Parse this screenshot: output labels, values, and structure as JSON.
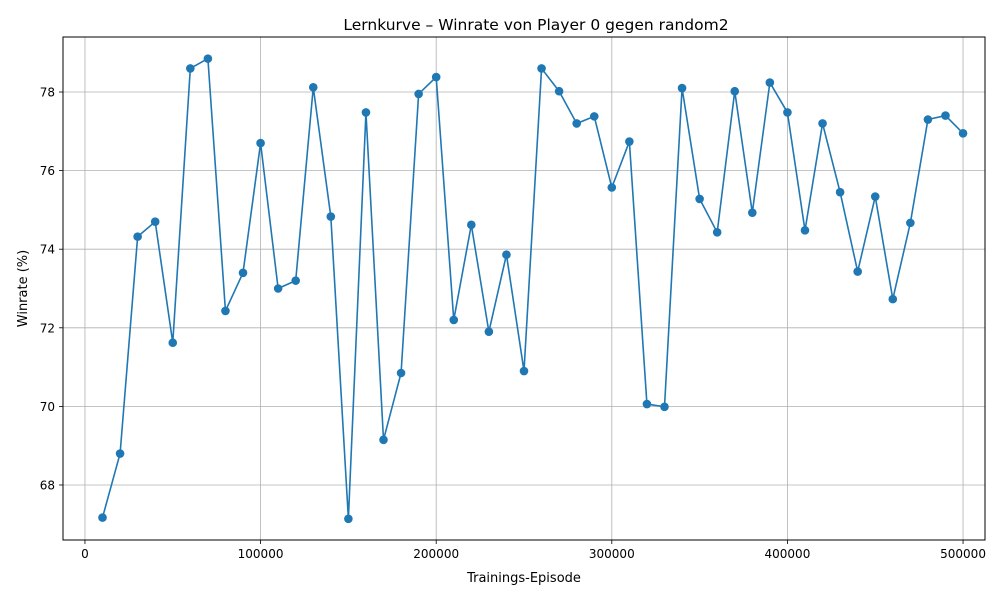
{
  "chart_data": {
    "type": "line",
    "title": "Lernkurve – Winrate von Player 0 gegen random2",
    "xlabel": "Trainings-Episode",
    "ylabel": "Winrate (%)",
    "xlim": [
      -12500,
      512500
    ],
    "ylim": [
      66.6,
      79.4
    ],
    "xticks": [
      0,
      100000,
      200000,
      300000,
      400000,
      500000
    ],
    "yticks": [
      68,
      70,
      72,
      74,
      76,
      78
    ],
    "grid": true,
    "color": "#1f77b4",
    "marker": "circle",
    "series": [
      {
        "x": [
          10000,
          20000,
          30000,
          40000,
          50000,
          60000,
          70000,
          80000,
          90000,
          100000,
          110000,
          120000,
          130000,
          140000,
          150000,
          160000,
          170000,
          180000,
          190000,
          200000,
          210000,
          220000,
          230000,
          240000,
          250000,
          260000,
          270000,
          280000,
          290000,
          300000,
          310000,
          320000,
          330000,
          340000,
          350000,
          360000,
          370000,
          380000,
          390000,
          400000,
          410000,
          420000,
          430000,
          440000,
          450000,
          460000,
          470000,
          480000,
          490000,
          500000
        ],
        "y": [
          67.17,
          68.8,
          74.32,
          74.7,
          71.62,
          78.6,
          78.85,
          72.43,
          73.4,
          76.7,
          73.0,
          73.2,
          78.12,
          74.83,
          67.14,
          77.48,
          69.15,
          70.85,
          77.95,
          78.38,
          72.2,
          74.62,
          71.9,
          73.86,
          70.9,
          78.6,
          78.02,
          77.2,
          77.38,
          75.57,
          76.74,
          70.06,
          69.99,
          78.1,
          75.28,
          74.43,
          78.02,
          74.93,
          78.24,
          77.48,
          74.48,
          77.2,
          75.45,
          73.43,
          75.34,
          72.73,
          74.67,
          77.3,
          77.4,
          76.95
        ]
      }
    ]
  }
}
